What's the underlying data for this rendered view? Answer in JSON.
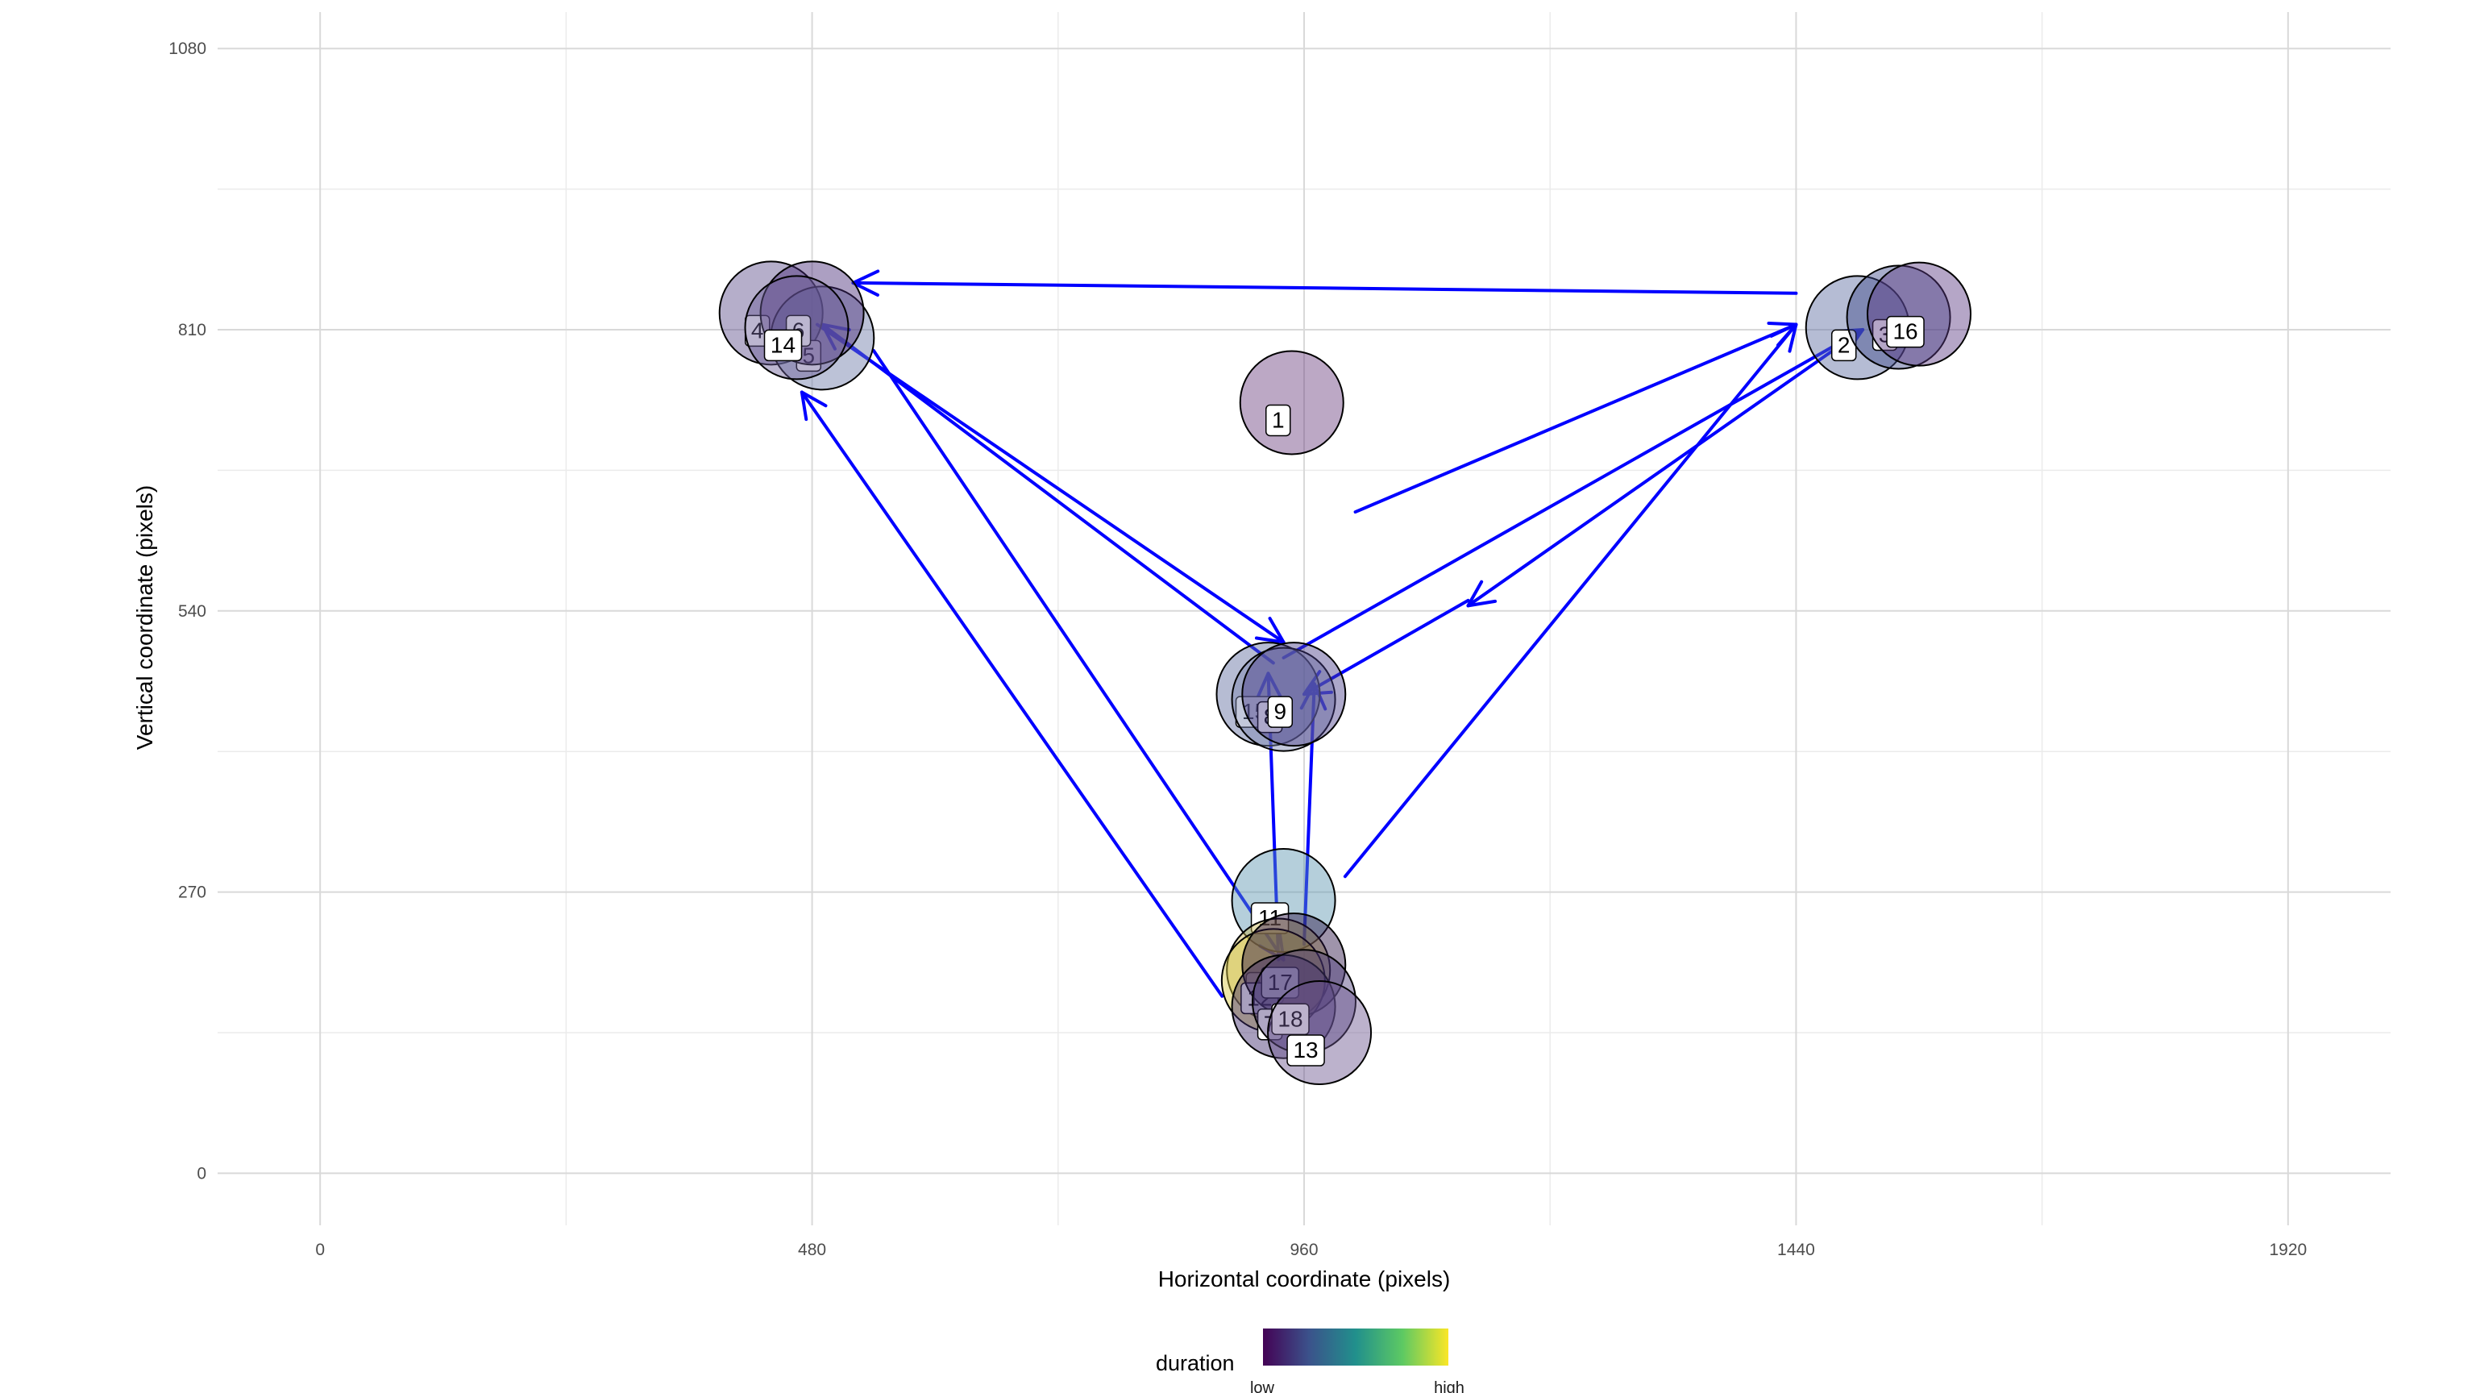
{
  "chart_data": {
    "type": "scatter",
    "title": "",
    "xlabel": "Horizontal coordinate (pixels)",
    "ylabel": "Vertical coordinate (pixels)",
    "xlim": [
      -100,
      2020
    ],
    "ylim": [
      -50,
      1115
    ],
    "x_ticks": [
      0,
      480,
      960,
      1440,
      1920
    ],
    "y_ticks": [
      0,
      270,
      540,
      810,
      1080
    ],
    "grid": true,
    "legend": {
      "title": "duration",
      "position": "bottom",
      "low_label": "low",
      "high_label": "high",
      "colors": [
        "#440154",
        "#3b528b",
        "#21908c",
        "#5dc963",
        "#fde725"
      ]
    },
    "points": [
      {
        "label": "1",
        "x": 948,
        "y": 740,
        "duration": 0.15,
        "color": "#6a3d7f"
      },
      {
        "label": "2",
        "x": 1500,
        "y": 812,
        "duration": 0.4,
        "color": "#5a6aa0"
      },
      {
        "label": "3",
        "x": 1540,
        "y": 822,
        "duration": 0.35,
        "color": "#3e4a89"
      },
      {
        "label": "16",
        "x": 1560,
        "y": 825,
        "duration": 0.2,
        "color": "#5a3a83"
      },
      {
        "label": "4",
        "x": 440,
        "y": 826,
        "duration": 0.2,
        "color": "#5b4b8a"
      },
      {
        "label": "5",
        "x": 490,
        "y": 802,
        "duration": 0.4,
        "color": "#6b78a6"
      },
      {
        "label": "6",
        "x": 480,
        "y": 826,
        "duration": 0.1,
        "color": "#482a78"
      },
      {
        "label": "14",
        "x": 465,
        "y": 812,
        "duration": 0.25,
        "color": "#6b5d96"
      },
      {
        "label": "15",
        "x": 925,
        "y": 460,
        "duration": 0.3,
        "color": "#5e6b9e"
      },
      {
        "label": "8",
        "x": 940,
        "y": 455,
        "duration": 0.35,
        "color": "#7a86b0"
      },
      {
        "label": "9",
        "x": 950,
        "y": 460,
        "duration": 0.2,
        "color": "#4a3f8a"
      },
      {
        "label": "11",
        "x": 940,
        "y": 262,
        "duration": 0.55,
        "color": "#5b94b0"
      },
      {
        "label": "10",
        "x": 935,
        "y": 195,
        "duration": 0.85,
        "color": "#c8b450"
      },
      {
        "label": "12",
        "x": 930,
        "y": 185,
        "duration": 0.95,
        "color": "#d8c840"
      },
      {
        "label": "17",
        "x": 950,
        "y": 200,
        "duration": 0.05,
        "color": "#2a1245"
      },
      {
        "label": "7",
        "x": 940,
        "y": 160,
        "duration": 0.1,
        "color": "#3e2a6c"
      },
      {
        "label": "18",
        "x": 960,
        "y": 165,
        "duration": 0.15,
        "color": "#4b3b7a"
      },
      {
        "label": "13",
        "x": 975,
        "y": 135,
        "duration": 0.2,
        "color": "#6a558f"
      }
    ],
    "saccades": [
      {
        "x1": 1010,
        "y1": 635,
        "x2": 1440,
        "y2": 815
      },
      {
        "x1": 1440,
        "y1": 845,
        "x2": 520,
        "y2": 855
      },
      {
        "x1": 540,
        "y1": 790,
        "x2": 940,
        "y2": 205
      },
      {
        "x1": 935,
        "y1": 205,
        "x2": 925,
        "y2": 480
      },
      {
        "x1": 930,
        "y1": 490,
        "x2": 490,
        "y2": 815
      },
      {
        "x1": 485,
        "y1": 815,
        "x2": 940,
        "y2": 510
      },
      {
        "x1": 940,
        "y1": 495,
        "x2": 1505,
        "y2": 810
      },
      {
        "x1": 1505,
        "y1": 810,
        "x2": 1120,
        "y2": 545
      },
      {
        "x1": 1120,
        "y1": 550,
        "x2": 960,
        "y2": 460
      },
      {
        "x1": 960,
        "y1": 220,
        "x2": 970,
        "y2": 470
      },
      {
        "x1": 1000,
        "y1": 285,
        "x2": 1440,
        "y2": 815
      },
      {
        "x1": 880,
        "y1": 170,
        "x2": 470,
        "y2": 750
      }
    ]
  }
}
